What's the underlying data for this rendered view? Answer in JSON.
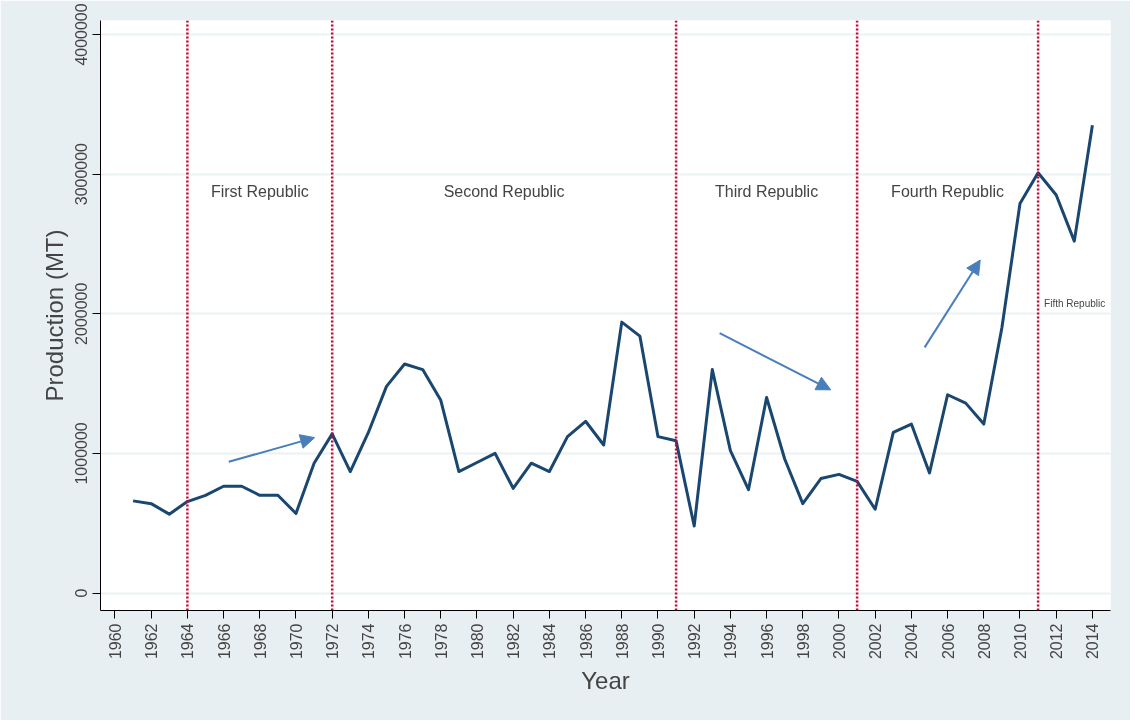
{
  "chart_data": {
    "type": "line",
    "xlabel": "Year",
    "ylabel": "Production (MT)",
    "x": [
      1961,
      1962,
      1963,
      1964,
      1965,
      1966,
      1967,
      1968,
      1969,
      1970,
      1971,
      1972,
      1973,
      1974,
      1975,
      1976,
      1977,
      1978,
      1979,
      1980,
      1981,
      1982,
      1983,
      1984,
      1985,
      1986,
      1987,
      1988,
      1989,
      1990,
      1991,
      1992,
      1993,
      1994,
      1995,
      1996,
      1997,
      1998,
      1999,
      2000,
      2001,
      2002,
      2003,
      2004,
      2005,
      2006,
      2007,
      2008,
      2009,
      2010,
      2011,
      2012,
      2013,
      2014
    ],
    "series": [
      {
        "color": "#1a476f",
        "values": [
          660000,
          640000,
          565000,
          655000,
          700000,
          765000,
          765000,
          700000,
          700000,
          570000,
          930000,
          1140000,
          870000,
          1150000,
          1480000,
          1640000,
          1600000,
          1380000,
          870000,
          935000,
          1000000,
          750000,
          930000,
          870000,
          1120000,
          1230000,
          1060000,
          1940000,
          1840000,
          1120000,
          1090000,
          480000,
          1600000,
          1020000,
          740000,
          1400000,
          960000,
          640000,
          820000,
          850000,
          800000,
          600000,
          1150000,
          1210000,
          860000,
          1420000,
          1360000,
          1210000,
          1900000,
          2790000,
          3010000,
          2850000,
          2520000,
          3350000
        ]
      }
    ],
    "xlim": [
      1959.2,
      2015.0
    ],
    "xticks": [
      1960,
      1962,
      1964,
      1966,
      1968,
      1970,
      1972,
      1974,
      1976,
      1978,
      1980,
      1982,
      1984,
      1986,
      1988,
      1990,
      1992,
      1994,
      1996,
      1998,
      2000,
      2002,
      2004,
      2006,
      2008,
      2010,
      2012,
      2014
    ],
    "ylim": [
      -125000,
      4100000
    ],
    "yticks": [
      0,
      1000000,
      2000000,
      3000000,
      4000000
    ],
    "grid": "y",
    "line_style": "solid",
    "marker": "none",
    "ref_lines": [
      {
        "axis": "x",
        "value": 1964,
        "color": "#c10534",
        "line_style": "dotted"
      },
      {
        "axis": "x",
        "value": 1972,
        "color": "#c10534",
        "line_style": "dotted"
      },
      {
        "axis": "x",
        "value": 1991,
        "color": "#c10534",
        "line_style": "dotted"
      },
      {
        "axis": "x",
        "value": 2001,
        "color": "#c10534",
        "line_style": "dotted"
      },
      {
        "axis": "x",
        "value": 2011,
        "color": "#c10534",
        "line_style": "dotted"
      }
    ],
    "annotations": [
      "First Republic",
      "Second Republic",
      "Third Republic",
      "Fourth Republic",
      "Fifth Republic"
    ]
  }
}
